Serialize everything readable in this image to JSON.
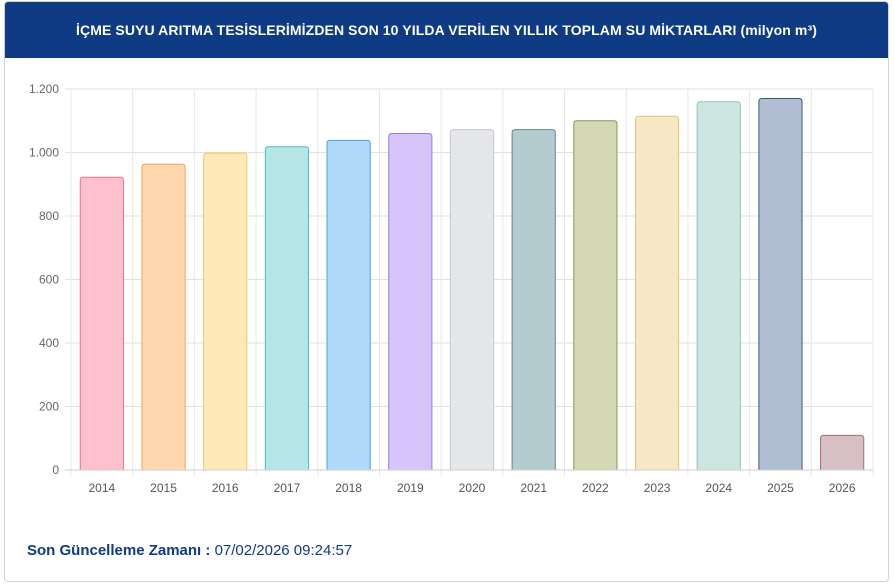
{
  "header": {
    "title": "İÇME SUYU ARITMA TESİSLERİMİZDEN SON 10 YILDA VERİLEN YILLIK TOPLAM SU MİKTARLARI (milyon m³)"
  },
  "footer": {
    "label": "Son Güncelleme Zamanı :",
    "value": "07/02/2026 09:24:57"
  },
  "chart_data": {
    "type": "bar",
    "categories": [
      "2014",
      "2015",
      "2016",
      "2017",
      "2018",
      "2019",
      "2020",
      "2021",
      "2022",
      "2023",
      "2024",
      "2025",
      "2026"
    ],
    "values": [
      922,
      963,
      998,
      1018,
      1038,
      1060,
      1072,
      1072,
      1100,
      1114,
      1160,
      1170,
      109
    ],
    "ylim": [
      0,
      1200
    ],
    "yticks": [
      0,
      200,
      400,
      600,
      800,
      1000,
      1200
    ],
    "ytick_labels": [
      "0",
      "200",
      "400",
      "600",
      "800",
      "1.000",
      "1.200"
    ],
    "grid": true,
    "colors": [
      {
        "fill": "#ffc0cd",
        "stroke": "#f26d8a"
      },
      {
        "fill": "#ffd8b0",
        "stroke": "#f3a24f"
      },
      {
        "fill": "#ffe9b8",
        "stroke": "#f2c75a"
      },
      {
        "fill": "#b5e6e6",
        "stroke": "#4fbcbc"
      },
      {
        "fill": "#b0d9f7",
        "stroke": "#4aa3e0"
      },
      {
        "fill": "#d6c4fb",
        "stroke": "#9b79ec"
      },
      {
        "fill": "#e6e7e9",
        "stroke": "#c4c6ca"
      },
      {
        "fill": "#b4cccf",
        "stroke": "#5e8a90"
      },
      {
        "fill": "#d5d9b3",
        "stroke": "#8c9456"
      },
      {
        "fill": "#f7e8c5",
        "stroke": "#e3c27c"
      },
      {
        "fill": "#cde6e2",
        "stroke": "#8ac6bc"
      },
      {
        "fill": "#b1bed2",
        "stroke": "#3f5682"
      },
      {
        "fill": "#d7c0c4",
        "stroke": "#a26e78"
      }
    ]
  }
}
